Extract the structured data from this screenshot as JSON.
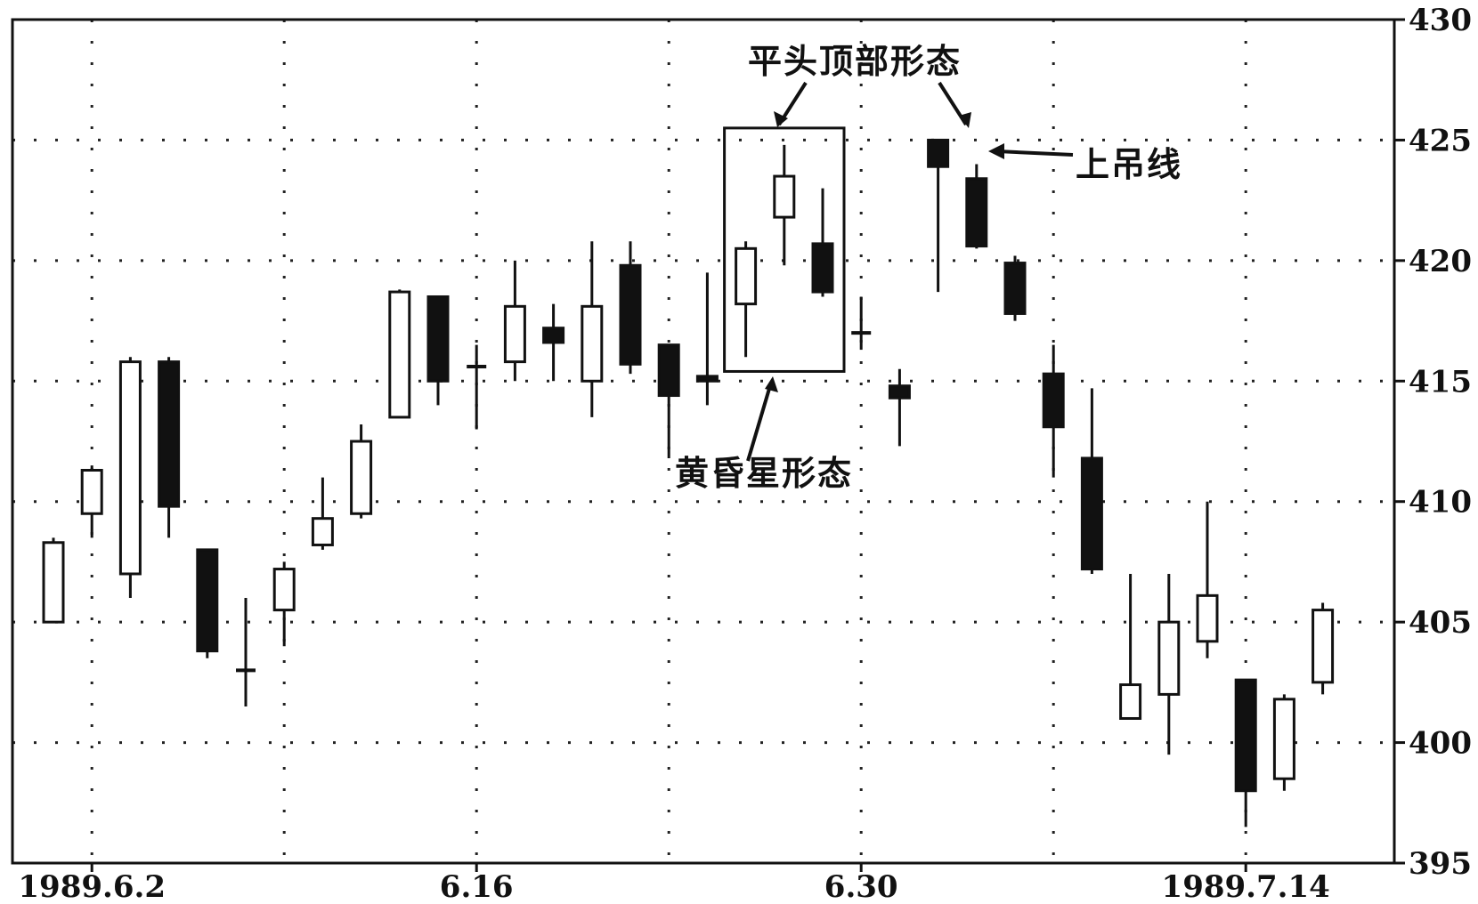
{
  "chart_data": {
    "type": "candlestick",
    "title": "",
    "xlabel": "",
    "ylabel": "",
    "ylim": [
      395,
      430
    ],
    "yticks": [
      395,
      400,
      405,
      410,
      415,
      420,
      425,
      430
    ],
    "y_tick_side": "right",
    "grid": true,
    "grid_style": "dotted",
    "x_tick_labels": [
      {
        "index": 1,
        "label": "1989.6.2"
      },
      {
        "index": 11,
        "label": "6.16"
      },
      {
        "index": 21,
        "label": "6.30"
      },
      {
        "index": 31,
        "label": "1989.7.14"
      }
    ],
    "x_grid_indices": [
      1,
      6,
      11,
      16,
      21,
      26,
      31
    ],
    "candles": [
      {
        "i": 0,
        "open": 405,
        "close": 408.3,
        "high": 408.5,
        "low": 405
      },
      {
        "i": 1,
        "open": 409.5,
        "close": 411.3,
        "high": 411.5,
        "low": 408.5
      },
      {
        "i": 2,
        "open": 407,
        "close": 415.8,
        "high": 416,
        "low": 406
      },
      {
        "i": 3,
        "open": 415.8,
        "close": 409.8,
        "high": 416,
        "low": 408.5
      },
      {
        "i": 4,
        "open": 408,
        "close": 403.8,
        "high": 408,
        "low": 403.5
      },
      {
        "i": 5,
        "open": 403,
        "close": 403,
        "high": 406,
        "low": 401.5
      },
      {
        "i": 6,
        "open": 405.5,
        "close": 407.2,
        "high": 407.5,
        "low": 404
      },
      {
        "i": 7,
        "open": 408.2,
        "close": 409.3,
        "high": 411,
        "low": 408
      },
      {
        "i": 8,
        "open": 409.5,
        "close": 412.5,
        "high": 413.2,
        "low": 409.3
      },
      {
        "i": 9,
        "open": 413.5,
        "close": 418.7,
        "high": 418.8,
        "low": 413.5
      },
      {
        "i": 10,
        "open": 418.5,
        "close": 415,
        "high": 418.5,
        "low": 414
      },
      {
        "i": 11,
        "open": 415.6,
        "close": 415.6,
        "high": 416.5,
        "low": 413
      },
      {
        "i": 12,
        "open": 415.8,
        "close": 418.1,
        "high": 420,
        "low": 415
      },
      {
        "i": 13,
        "open": 417.2,
        "close": 416.6,
        "high": 418.2,
        "low": 415
      },
      {
        "i": 14,
        "open": 415,
        "close": 418.1,
        "high": 420.8,
        "low": 413.5
      },
      {
        "i": 15,
        "open": 419.8,
        "close": 415.7,
        "high": 420.8,
        "low": 415.3
      },
      {
        "i": 16,
        "open": 416.5,
        "close": 414.4,
        "high": 416.5,
        "low": 411.8
      },
      {
        "i": 17,
        "open": 415.2,
        "close": 415,
        "high": 419.5,
        "low": 414
      },
      {
        "i": 18,
        "open": 418.2,
        "close": 420.5,
        "high": 420.8,
        "low": 416
      },
      {
        "i": 19,
        "open": 421.8,
        "close": 423.5,
        "high": 424.8,
        "low": 419.8
      },
      {
        "i": 20,
        "open": 420.7,
        "close": 418.7,
        "high": 423,
        "low": 418.5
      },
      {
        "i": 21,
        "open": 417,
        "close": 416.9,
        "high": 418.5,
        "low": 416.3
      },
      {
        "i": 22,
        "open": 414.8,
        "close": 414.3,
        "high": 415.5,
        "low": 412.3
      },
      {
        "i": 23,
        "open": 425,
        "close": 423.9,
        "high": 425,
        "low": 418.7
      },
      {
        "i": 24,
        "open": 423.4,
        "close": 420.6,
        "high": 424,
        "low": 420.5
      },
      {
        "i": 25,
        "open": 419.9,
        "close": 417.8,
        "high": 420.2,
        "low": 417.5
      },
      {
        "i": 26,
        "open": 415.3,
        "close": 413.1,
        "high": 416.5,
        "low": 411
      },
      {
        "i": 27,
        "open": 411.8,
        "close": 407.2,
        "high": 414.7,
        "low": 407
      },
      {
        "i": 28,
        "open": 401,
        "close": 402.4,
        "high": 407,
        "low": 401
      },
      {
        "i": 29,
        "open": 402,
        "close": 405,
        "high": 407,
        "low": 399.5
      },
      {
        "i": 30,
        "open": 404.2,
        "close": 406.1,
        "high": 410,
        "low": 403.5
      },
      {
        "i": 31,
        "open": 402.6,
        "close": 398,
        "high": 402.6,
        "low": 396.5
      },
      {
        "i": 32,
        "open": 398.5,
        "close": 401.8,
        "high": 402,
        "low": 398
      },
      {
        "i": 33,
        "open": 402.5,
        "close": 405.5,
        "high": 405.8,
        "low": 402
      }
    ],
    "annotations": {
      "flat_top": "平头顶部形态",
      "hanging_man": "上吊线",
      "evening_star": "黄昏星形态"
    },
    "pattern_box": {
      "from_index": 18,
      "to_index": 20,
      "y_top": 425.5,
      "y_bottom": 415.4
    },
    "colors": {
      "up_fill": "#ffffff",
      "down_fill": "#111111",
      "ink": "#111111",
      "background": "#ffffff"
    }
  }
}
